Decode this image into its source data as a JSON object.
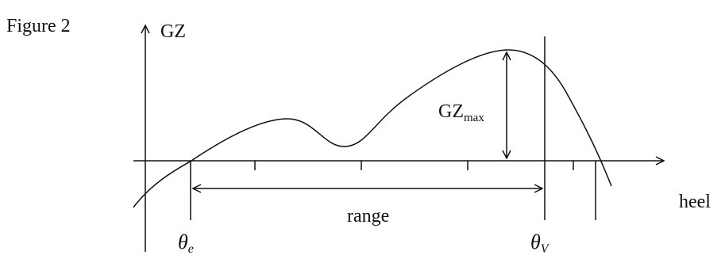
{
  "figure": {
    "caption": "Figure 2",
    "y_axis_label": "GZ",
    "x_axis_label": "heel",
    "gz_max_label": "GZ",
    "gz_max_subscript": "max",
    "range_label": "range",
    "theta_e_symbol": "θ",
    "theta_e_subscript": "e",
    "theta_v_symbol": "θ",
    "theta_v_subscript": "V"
  }
}
